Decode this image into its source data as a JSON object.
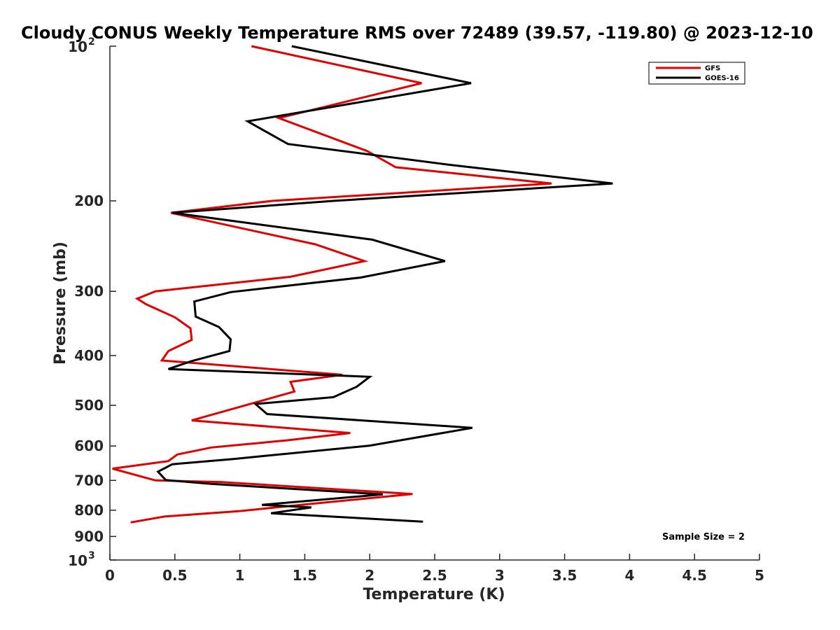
{
  "chart_data": {
    "type": "line",
    "title": "Cloudy CONUS Weekly Temperature RMS over 72489 (39.57, -119.80) @ 2023-12-10",
    "xlabel": "Temperature (K)",
    "ylabel": "Pressure (mb)",
    "xlim": [
      0,
      5
    ],
    "ylim": [
      100,
      1000
    ],
    "y_scale": "log",
    "y_reversed": true,
    "grid": false,
    "legend_position": "top-right",
    "x_ticks": [
      {
        "value": 0,
        "label": "0"
      },
      {
        "value": 0.5,
        "label": "0.5"
      },
      {
        "value": 1,
        "label": "1"
      },
      {
        "value": 1.5,
        "label": "1.5"
      },
      {
        "value": 2,
        "label": "2"
      },
      {
        "value": 2.5,
        "label": "2.5"
      },
      {
        "value": 3,
        "label": "3"
      },
      {
        "value": 3.5,
        "label": "3.5"
      },
      {
        "value": 4,
        "label": "4"
      },
      {
        "value": 4.5,
        "label": "4.5"
      },
      {
        "value": 5,
        "label": "5"
      }
    ],
    "y_ticks": [
      {
        "value": 100,
        "base": "10",
        "exp": "2"
      },
      {
        "value": 200,
        "label": "200"
      },
      {
        "value": 300,
        "label": "300"
      },
      {
        "value": 400,
        "label": "400"
      },
      {
        "value": 500,
        "label": "500"
      },
      {
        "value": 600,
        "label": "600"
      },
      {
        "value": 700,
        "label": "700"
      },
      {
        "value": 800,
        "label": "800"
      },
      {
        "value": 900,
        "label": "900"
      },
      {
        "value": 1000,
        "base": "10",
        "exp": "3"
      }
    ],
    "series": [
      {
        "name": "GFS",
        "color": "#e00000",
        "points": [
          [
            1.09,
            100
          ],
          [
            2.4,
            118
          ],
          [
            1.3,
            138
          ],
          [
            1.98,
            160
          ],
          [
            2.2,
            172
          ],
          [
            3.4,
            185
          ],
          [
            1.25,
            200
          ],
          [
            0.47,
            211
          ],
          [
            1.58,
            243
          ],
          [
            1.96,
            262
          ],
          [
            1.39,
            281
          ],
          [
            0.35,
            300
          ],
          [
            0.21,
            310
          ],
          [
            0.28,
            318
          ],
          [
            0.5,
            337
          ],
          [
            0.62,
            354
          ],
          [
            0.63,
            373
          ],
          [
            0.45,
            392
          ],
          [
            0.4,
            409
          ],
          [
            1.79,
            436
          ],
          [
            1.39,
            450
          ],
          [
            1.42,
            470
          ],
          [
            0.63,
            535
          ],
          [
            1.85,
            566
          ],
          [
            1.36,
            585
          ],
          [
            0.78,
            604
          ],
          [
            0.52,
            623
          ],
          [
            0.45,
            642
          ],
          [
            0.02,
            664
          ],
          [
            0.35,
            700
          ],
          [
            0.85,
            705
          ],
          [
            2.33,
            744
          ],
          [
            1.47,
            781
          ],
          [
            1.0,
            803
          ],
          [
            0.42,
            823
          ],
          [
            0.16,
            845
          ]
        ]
      },
      {
        "name": "GOES-16",
        "color": "#000000",
        "points": [
          [
            1.4,
            100
          ],
          [
            2.78,
            118
          ],
          [
            1.06,
            140
          ],
          [
            1.37,
            155
          ],
          [
            2.6,
            170
          ],
          [
            3.87,
            185
          ],
          [
            1.72,
            200
          ],
          [
            0.48,
            211
          ],
          [
            2.02,
            238
          ],
          [
            2.58,
            262
          ],
          [
            1.93,
            282
          ],
          [
            0.93,
            301
          ],
          [
            0.65,
            314
          ],
          [
            0.66,
            336
          ],
          [
            0.84,
            352
          ],
          [
            0.93,
            372
          ],
          [
            0.92,
            392
          ],
          [
            0.63,
            410
          ],
          [
            0.45,
            425
          ],
          [
            2.0,
            440
          ],
          [
            1.9,
            460
          ],
          [
            1.72,
            482
          ],
          [
            1.12,
            497
          ],
          [
            1.21,
            520
          ],
          [
            2.79,
            553
          ],
          [
            2.0,
            599
          ],
          [
            0.95,
            636
          ],
          [
            0.48,
            651
          ],
          [
            0.37,
            673
          ],
          [
            0.43,
            699
          ],
          [
            0.78,
            711
          ],
          [
            2.1,
            745
          ],
          [
            1.17,
            781
          ],
          [
            1.55,
            790
          ],
          [
            1.24,
            811
          ],
          [
            2.41,
            842
          ]
        ]
      }
    ],
    "legend": [
      "GFS",
      "GOES-16"
    ],
    "annotations": [
      "Sample Size = 2"
    ]
  }
}
